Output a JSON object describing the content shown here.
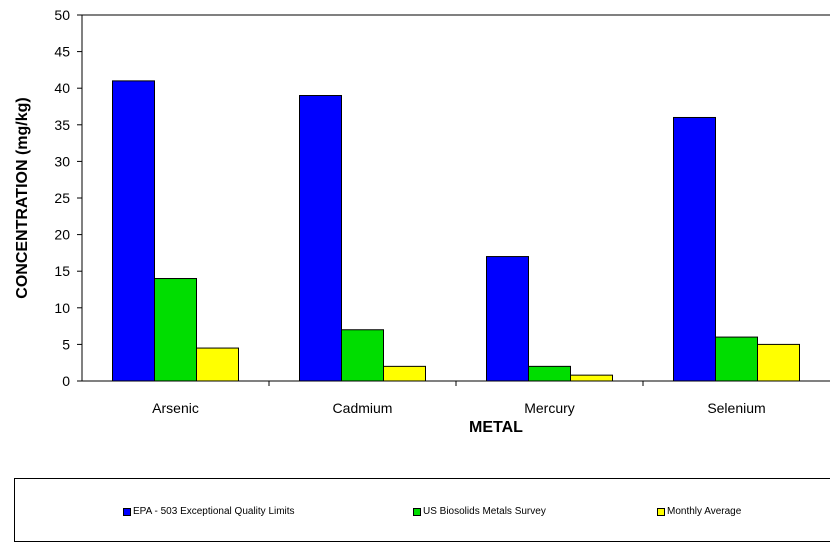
{
  "chart_data": {
    "type": "bar",
    "title": "",
    "xlabel": "METAL",
    "ylabel": "CONCENTRATION (mg/kg)",
    "ylim": [
      0,
      50
    ],
    "yticks": [
      "0",
      "5",
      "10",
      "15",
      "20",
      "25",
      "30",
      "35",
      "40",
      "45",
      "50"
    ],
    "grid": false,
    "legend_position": "bottom",
    "categories": [
      "Arsenic",
      "Cadmium",
      "Mercury",
      "Selenium"
    ],
    "series": [
      {
        "name": "EPA - 503 Exceptional Quality Limits",
        "color": "#0000ff",
        "values": [
          41,
          39,
          17,
          36
        ]
      },
      {
        "name": "US Biosolids Metals Survey",
        "color": "#00dd00",
        "values": [
          14,
          7,
          2,
          6
        ]
      },
      {
        "name": "Monthly Average",
        "color": "#ffff00",
        "values": [
          4.5,
          2,
          0.8,
          5
        ]
      }
    ]
  }
}
